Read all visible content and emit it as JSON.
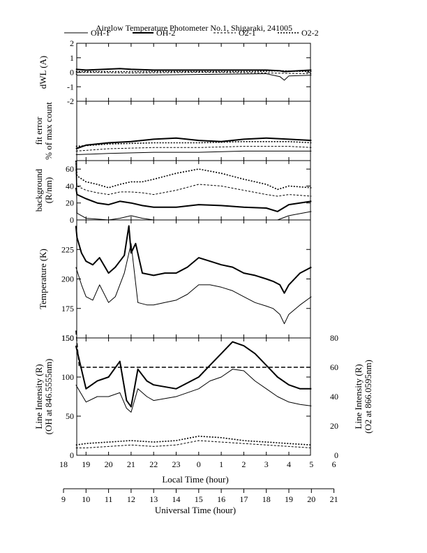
{
  "chart_data": {
    "type": "line",
    "title": "Airglow Temperature Photometer No.1, Shigaraki, 241005",
    "legend": {
      "placement": "top",
      "entries": [
        {
          "label": "OH-1",
          "style": "solid-thin"
        },
        {
          "label": "OH-2",
          "style": "solid-thick"
        },
        {
          "label": "O2-1",
          "style": "dashed-thin"
        },
        {
          "label": "O2-2",
          "style": "dashed-thick"
        }
      ]
    },
    "x_axes": {
      "local_time": {
        "label": "Local Time (hour)",
        "ticks": [
          "18",
          "19",
          "20",
          "21",
          "22",
          "23",
          "0",
          "1",
          "2",
          "3",
          "4",
          "5",
          "6"
        ]
      },
      "universal_time": {
        "label": "Universal Time (hour)",
        "ticks": [
          "9",
          "10",
          "11",
          "12",
          "13",
          "14",
          "15",
          "16",
          "17",
          "18",
          "19",
          "20",
          "21"
        ]
      },
      "range_ut": [
        9,
        21
      ]
    },
    "panels": [
      {
        "id": "dwl",
        "ylabel": "dWL (A)",
        "ylim": [
          -2,
          2
        ],
        "yticks": [
          "-2",
          "-1",
          "0",
          "1",
          "2"
        ],
        "series": [
          {
            "name": "OH-1",
            "style": "solid-thin",
            "x": [
              9.55,
              9.6,
              12,
              15,
              18,
              18.6,
              18.8,
              19,
              20
            ],
            "y": [
              -0.1,
              -0.2,
              -0.2,
              -0.15,
              -0.1,
              -0.3,
              -0.55,
              -0.25,
              -0.2
            ]
          },
          {
            "name": "OH-2",
            "style": "solid-thick",
            "x": [
              9.55,
              10,
              11.5,
              12,
              13,
              15,
              18,
              18.6,
              18.8,
              20
            ],
            "y": [
              0.2,
              0.15,
              0.25,
              0.2,
              0.15,
              0.15,
              0.15,
              0.1,
              0.05,
              0.15
            ]
          },
          {
            "name": "O2-1",
            "style": "dashed-thin",
            "x": [
              9.55,
              12,
              15,
              18,
              20
            ],
            "y": [
              0.0,
              -0.05,
              0.0,
              -0.05,
              -0.1
            ]
          },
          {
            "name": "O2-2",
            "style": "dashed-thick",
            "x": [
              9.55,
              12,
              15,
              17.5,
              18.5,
              20
            ],
            "y": [
              0.05,
              0.05,
              0.05,
              0.05,
              0.1,
              0.05
            ]
          }
        ]
      },
      {
        "id": "fit_error",
        "ylabel": "fit error",
        "ylabel2": "% of max count",
        "ylim": [
          0,
          5
        ],
        "yticks": [],
        "series": [
          {
            "name": "OH-1",
            "style": "solid-thin",
            "x": [
              9.55,
              11,
              13,
              15,
              17,
              19,
              20
            ],
            "y": [
              0.5,
              0.6,
              0.7,
              0.7,
              0.8,
              0.8,
              0.8
            ]
          },
          {
            "name": "OH-2",
            "style": "solid-thick",
            "x": [
              9.55,
              10,
              11,
              12,
              13,
              14,
              15,
              16,
              17,
              18,
              19,
              20
            ],
            "y": [
              1.0,
              1.3,
              1.5,
              1.6,
              1.8,
              1.9,
              1.7,
              1.6,
              1.8,
              1.9,
              1.8,
              1.7
            ]
          },
          {
            "name": "O2-1",
            "style": "dashed-thin",
            "x": [
              9.55,
              11,
              13,
              15,
              17,
              19,
              20
            ],
            "y": [
              0.8,
              1.0,
              1.1,
              1.1,
              1.2,
              1.2,
              1.1
            ]
          },
          {
            "name": "O2-2",
            "style": "dashed-thick",
            "x": [
              9.55,
              11,
              13,
              15,
              17,
              19,
              20
            ],
            "y": [
              1.2,
              1.4,
              1.5,
              1.5,
              1.6,
              1.6,
              1.5
            ]
          }
        ]
      },
      {
        "id": "background",
        "ylabel": "background",
        "ylabel2": "(R/nm)",
        "ylim": [
          0,
          70
        ],
        "yticks": [
          "0",
          "20",
          "40",
          "60"
        ],
        "series": [
          {
            "name": "OH-1",
            "style": "solid-thin",
            "x": [
              9.55,
              9.6,
              10,
              10.5,
              11,
              11.5,
              12,
              12.5,
              13,
              14,
              15,
              16,
              17,
              18,
              18.5,
              19,
              20
            ],
            "y": [
              70,
              8,
              2,
              1,
              0,
              2,
              5,
              2,
              0,
              0,
              0,
              0,
              0,
              0,
              0,
              5,
              10
            ]
          },
          {
            "name": "OH-2",
            "style": "solid-thick",
            "x": [
              9.55,
              9.6,
              10,
              10.5,
              11,
              11.5,
              12,
              12.5,
              13,
              14,
              15,
              16,
              17,
              18,
              18.5,
              19,
              20
            ],
            "y": [
              38,
              30,
              25,
              20,
              18,
              22,
              20,
              17,
              15,
              15,
              18,
              17,
              15,
              14,
              10,
              18,
              22
            ]
          },
          {
            "name": "O2-1",
            "style": "dashed-thin",
            "x": [
              9.55,
              9.6,
              10,
              10.5,
              11,
              11.5,
              12,
              12.5,
              13,
              14,
              15,
              16,
              17,
              18,
              18.5,
              19,
              20
            ],
            "y": [
              60,
              40,
              35,
              32,
              30,
              33,
              33,
              32,
              30,
              35,
              42,
              40,
              35,
              30,
              28,
              30,
              28
            ]
          },
          {
            "name": "O2-2",
            "style": "dashed-thick",
            "x": [
              9.55,
              9.6,
              10,
              10.5,
              11,
              11.5,
              12,
              12.5,
              13,
              14,
              15,
              16,
              17,
              18,
              18.5,
              19,
              20
            ],
            "y": [
              70,
              52,
              45,
              42,
              38,
              42,
              45,
              45,
              48,
              55,
              60,
              55,
              48,
              42,
              36,
              40,
              38
            ]
          }
        ]
      },
      {
        "id": "temperature",
        "ylabel": "Temperature (K)",
        "ylim": [
          150,
          250
        ],
        "yticks": [
          "150",
          "175",
          "200",
          "225"
        ],
        "series": [
          {
            "name": "OH-1",
            "style": "solid-thin",
            "x": [
              9.55,
              9.8,
              10,
              10.3,
              10.6,
              11,
              11.3,
              11.7,
              12,
              12.3,
              12.7,
              13,
              13.5,
              14,
              14.5,
              15,
              15.5,
              16,
              16.5,
              17,
              17.5,
              18,
              18.3,
              18.6,
              18.8,
              19,
              19.5,
              20
            ],
            "y": [
              210,
              195,
              185,
              182,
              195,
              180,
              185,
              205,
              230,
              180,
              178,
              178,
              180,
              182,
              187,
              195,
              195,
              193,
              190,
              185,
              180,
              177,
              175,
              170,
              162,
              170,
              178,
              185
            ]
          },
          {
            "name": "OH-2",
            "style": "solid-thick",
            "x": [
              9.55,
              9.6,
              9.8,
              10,
              10.3,
              10.6,
              11,
              11.3,
              11.7,
              11.9,
              12,
              12.2,
              12.5,
              13,
              13.5,
              14,
              14.5,
              15,
              15.5,
              16,
              16.5,
              17,
              17.5,
              18,
              18.3,
              18.6,
              18.8,
              19,
              19.5,
              20
            ],
            "y": [
              245,
              235,
              222,
              215,
              212,
              218,
              205,
              210,
              220,
              245,
              222,
              230,
              205,
              203,
              205,
              205,
              210,
              218,
              215,
              212,
              210,
              205,
              203,
              200,
              198,
              195,
              188,
              195,
              205,
              210
            ]
          }
        ]
      },
      {
        "id": "line_intensity",
        "ylabel": "Line Intensity (R)",
        "ylabel2": "(OH at 846.5555nm)",
        "ylabel_right": "Line Intensity (R)",
        "ylabel_right2": "(O2 at 866.0595nm)",
        "ylim": [
          0,
          150
        ],
        "yticks": [
          "0",
          "50",
          "100",
          "150"
        ],
        "ylim_right": [
          0,
          80
        ],
        "yticks_right": [
          "0",
          "20",
          "40",
          "60",
          "80"
        ],
        "series": [
          {
            "name": "OH-1",
            "style": "solid-thin",
            "axis": "left",
            "x": [
              9.55,
              10,
              10.5,
              11,
              11.5,
              11.8,
              12,
              12.3,
              12.7,
              13,
              14,
              15,
              15.5,
              16,
              16.5,
              17,
              17.5,
              18,
              18.5,
              19,
              19.5,
              20
            ],
            "y": [
              90,
              68,
              75,
              75,
              80,
              60,
              55,
              85,
              75,
              70,
              75,
              85,
              95,
              100,
              110,
              108,
              95,
              85,
              75,
              68,
              65,
              63
            ]
          },
          {
            "name": "OH-2",
            "style": "solid-thick",
            "axis": "left",
            "x": [
              9.55,
              10,
              10.5,
              11,
              11.5,
              11.8,
              12,
              12.3,
              12.7,
              13,
              14,
              15,
              15.5,
              16,
              16.5,
              17,
              17.5,
              18,
              18.5,
              19,
              19.5,
              20
            ],
            "y": [
              140,
              85,
              95,
              100,
              120,
              70,
              62,
              110,
              95,
              90,
              85,
              100,
              115,
              130,
              145,
              140,
              130,
              115,
              100,
              90,
              85,
              85
            ]
          },
          {
            "name": "O2-1",
            "style": "dashed-thin",
            "axis": "right",
            "x": [
              9.55,
              10,
              11,
              12,
              13,
              14,
              15,
              16,
              17,
              18,
              19,
              20
            ],
            "y": [
              5,
              5,
              6,
              7,
              6,
              7,
              10,
              9,
              8,
              7,
              6,
              5
            ]
          },
          {
            "name": "O2-2",
            "style": "dashed-thick",
            "axis": "right",
            "x": [
              9.55,
              10,
              11,
              12,
              13,
              14,
              15,
              16,
              17,
              18,
              19,
              20
            ],
            "y": [
              7,
              8,
              9,
              10,
              9,
              10,
              13,
              12,
              10,
              9,
              8,
              7
            ]
          },
          {
            "name": "O2 reference",
            "style": "dashed-long",
            "axis": "right",
            "x": [
              9.55,
              9.7,
              20
            ],
            "y": [
              85,
              60,
              60
            ]
          }
        ]
      }
    ]
  }
}
